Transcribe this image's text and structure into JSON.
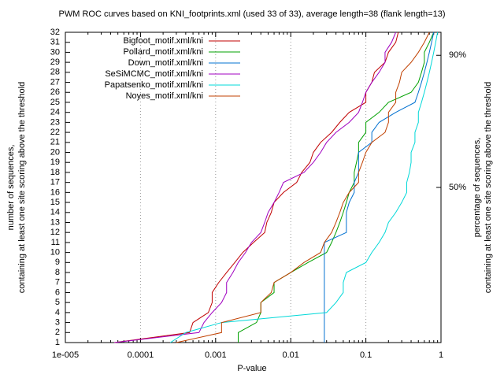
{
  "chart_data": {
    "type": "line",
    "title": "PWM ROC curves based on KNI_footprints.xml (used 33 of 33), average length=38 (flank length=13)",
    "xlabel": "P-value",
    "ylabel": [
      "number of sequences,",
      "containing at least one site scoring above the threshold"
    ],
    "y2label": [
      "percentage of sequences,",
      "containing at least one site scoring above the threshold"
    ],
    "xlog": true,
    "xlim": [
      1e-05,
      1
    ],
    "xticks": [
      {
        "value": 1e-05,
        "label": "1e-005"
      },
      0.0001,
      0.001,
      0.01,
      0.1,
      1
    ],
    "ylim": [
      1,
      32
    ],
    "yticks": [
      1,
      2,
      3,
      4,
      5,
      6,
      7,
      8,
      9,
      10,
      11,
      12,
      13,
      14,
      15,
      16,
      17,
      18,
      19,
      20,
      21,
      22,
      23,
      24,
      25,
      26,
      27,
      28,
      29,
      30,
      31,
      32
    ],
    "y2lim": [
      3.03,
      96.97
    ],
    "y2ticks": [
      {
        "value": 50,
        "label": "50%"
      },
      {
        "value": 90,
        "label": "90%"
      }
    ],
    "grid": true,
    "legend": "top-left",
    "series": [
      {
        "name": "Bigfoot_motif.xml/kni",
        "color": "#c00000",
        "x": [
          4.5e-05,
          0.00045,
          0.0005,
          0.0008,
          0.0009,
          0.0009,
          0.0011,
          0.0014,
          0.0018,
          0.0023,
          0.0032,
          0.0045,
          0.0048,
          0.0055,
          0.006,
          0.008,
          0.012,
          0.014,
          0.018,
          0.02,
          0.025,
          0.035,
          0.045,
          0.06,
          0.1,
          0.1,
          0.12,
          0.13,
          0.18,
          0.2,
          0.25,
          0.27
        ],
        "values": [
          1,
          2,
          3,
          4,
          5,
          6,
          7,
          8,
          9,
          10,
          11,
          12,
          13,
          14,
          15,
          16,
          17,
          18,
          19,
          20,
          21,
          22,
          23,
          24,
          25,
          26,
          27,
          28,
          29,
          30,
          31,
          32
        ]
      },
      {
        "name": "Pollard_motif.xml/kni",
        "color": "#00a000",
        "x": [
          0.002,
          0.002,
          0.0035,
          0.004,
          0.004,
          0.006,
          0.006,
          0.01,
          0.017,
          0.03,
          0.035,
          0.04,
          0.045,
          0.05,
          0.055,
          0.06,
          0.07,
          0.07,
          0.075,
          0.08,
          0.08,
          0.1,
          0.1,
          0.15,
          0.2,
          0.4,
          0.5,
          0.55,
          0.6,
          0.6,
          0.7,
          0.8
        ],
        "values": [
          1,
          2,
          3,
          4,
          5,
          6,
          7,
          8,
          9,
          10,
          11,
          12,
          13,
          14,
          15,
          16,
          17,
          18,
          19,
          20,
          21,
          22,
          23,
          24,
          25,
          26,
          27,
          28,
          29,
          30,
          31,
          32
        ]
      },
      {
        "name": "Down_motif.xml/kni",
        "color": "#0070d0",
        "x": [
          0.028,
          0.028,
          0.028,
          0.028,
          0.028,
          0.028,
          0.028,
          0.028,
          0.028,
          0.028,
          0.028,
          0.055,
          0.055,
          0.055,
          0.06,
          0.07,
          0.07,
          0.08,
          0.08,
          0.08,
          0.12,
          0.12,
          0.15,
          0.25,
          0.45,
          0.5,
          0.55,
          0.6,
          0.65,
          0.7,
          0.75,
          0.8
        ],
        "values": [
          1,
          2,
          3,
          4,
          5,
          6,
          7,
          8,
          9,
          10,
          11,
          12,
          13,
          14,
          15,
          16,
          17,
          18,
          19,
          20,
          21,
          22,
          23,
          24,
          25,
          26,
          27,
          28,
          29,
          30,
          31,
          32
        ]
      },
      {
        "name": "SeSiMCMC_motif.xml/kni",
        "color": "#a000c0",
        "x": [
          4.5e-05,
          0.0006,
          0.0007,
          0.0009,
          0.0012,
          0.0014,
          0.0014,
          0.0017,
          0.002,
          0.0025,
          0.003,
          0.004,
          0.0045,
          0.005,
          0.006,
          0.007,
          0.008,
          0.015,
          0.02,
          0.025,
          0.03,
          0.04,
          0.06,
          0.08,
          0.09,
          0.1,
          0.12,
          0.15,
          0.18,
          0.18,
          0.22,
          0.25
        ],
        "values": [
          1,
          2,
          3,
          4,
          5,
          6,
          7,
          8,
          9,
          10,
          11,
          12,
          13,
          14,
          15,
          16,
          17,
          18,
          19,
          20,
          21,
          22,
          23,
          24,
          25,
          26,
          27,
          28,
          29,
          30,
          31,
          32
        ]
      },
      {
        "name": "Papatsenko_motif.xml/kni",
        "color": "#00d8d8",
        "x": [
          0.00025,
          0.0004,
          0.0012,
          0.03,
          0.04,
          0.05,
          0.05,
          0.055,
          0.1,
          0.12,
          0.15,
          0.18,
          0.2,
          0.25,
          0.3,
          0.35,
          0.35,
          0.38,
          0.4,
          0.4,
          0.45,
          0.45,
          0.5,
          0.5,
          0.55,
          0.6,
          0.65,
          0.7,
          0.75,
          0.8,
          0.85,
          0.9
        ],
        "values": [
          1,
          2,
          3,
          4,
          5,
          6,
          7,
          8,
          9,
          10,
          11,
          12,
          13,
          14,
          15,
          16,
          17,
          18,
          19,
          20,
          21,
          22,
          23,
          24,
          25,
          26,
          27,
          28,
          29,
          30,
          31,
          32
        ]
      },
      {
        "name": "Noyes_motif.xml/kni",
        "color": "#c04000",
        "x": [
          0.0003,
          0.0012,
          0.0012,
          0.004,
          0.004,
          0.0055,
          0.006,
          0.01,
          0.015,
          0.025,
          0.028,
          0.035,
          0.04,
          0.045,
          0.05,
          0.06,
          0.08,
          0.08,
          0.09,
          0.1,
          0.12,
          0.18,
          0.2,
          0.2,
          0.25,
          0.25,
          0.28,
          0.3,
          0.4,
          0.5,
          0.6,
          0.7
        ],
        "values": [
          1,
          2,
          3,
          4,
          5,
          6,
          7,
          8,
          9,
          10,
          11,
          12,
          13,
          14,
          15,
          16,
          17,
          18,
          19,
          20,
          21,
          22,
          23,
          24,
          25,
          26,
          27,
          28,
          29,
          30,
          31,
          32
        ]
      }
    ]
  }
}
